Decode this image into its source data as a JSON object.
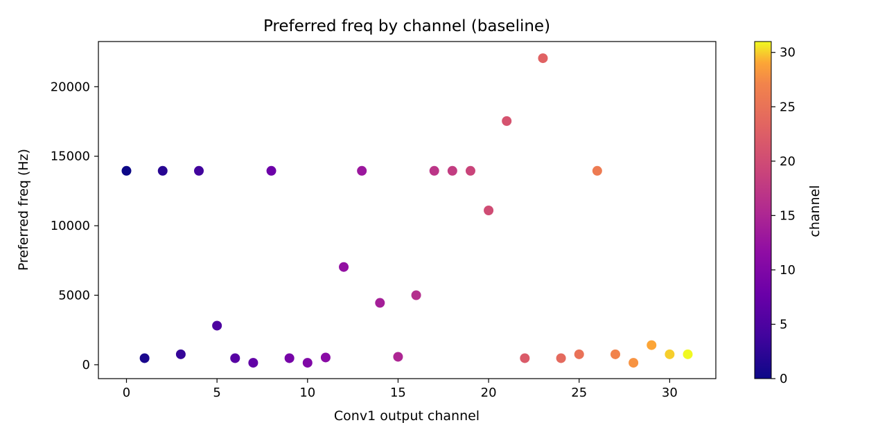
{
  "chart_data": {
    "type": "scatter",
    "title": "Preferred freq by channel (baseline)",
    "xlabel": "Conv1 output channel",
    "ylabel": "Preferred freq (Hz)",
    "xlim": [
      -1.55,
      32.55
    ],
    "ylim": [
      -1000,
      23250
    ],
    "xticks": [
      0,
      5,
      10,
      15,
      20,
      25,
      30
    ],
    "yticks": [
      0,
      5000,
      10000,
      15000,
      20000
    ],
    "grid": false,
    "colormap": "plasma",
    "colorbar": {
      "label": "channel",
      "range": [
        0,
        31
      ],
      "ticks": [
        0,
        5,
        10,
        15,
        20,
        25,
        30
      ]
    },
    "x": [
      0,
      1,
      2,
      3,
      4,
      5,
      6,
      7,
      8,
      9,
      10,
      11,
      12,
      13,
      14,
      15,
      16,
      17,
      18,
      19,
      20,
      21,
      22,
      23,
      24,
      25,
      26,
      27,
      28,
      29,
      30,
      31
    ],
    "y": [
      13950,
      470,
      13950,
      750,
      13950,
      2810,
      470,
      140,
      13950,
      470,
      140,
      520,
      7030,
      13950,
      4450,
      570,
      5000,
      13950,
      13950,
      13950,
      11100,
      17530,
      470,
      22050,
      470,
      750,
      13950,
      750,
      140,
      1410,
      750,
      750
    ],
    "color_by": "channel"
  }
}
